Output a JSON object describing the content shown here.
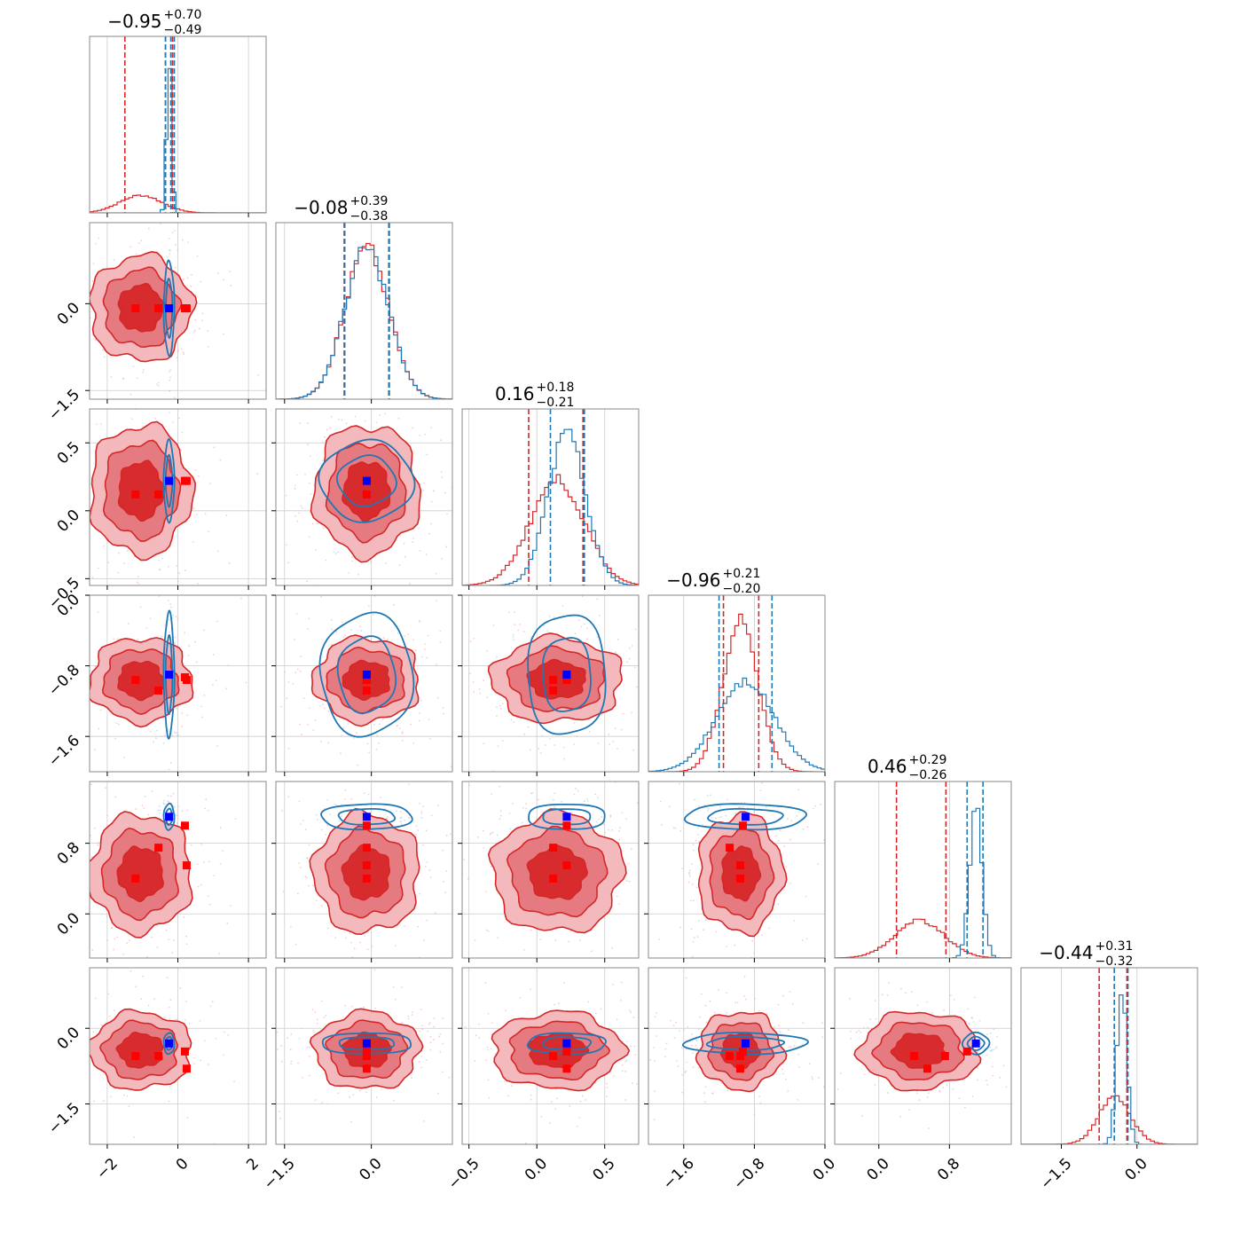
{
  "chart_data": {
    "type": "corner",
    "colors": {
      "red": "#d62728",
      "blue": "#1f77b4",
      "red_marker": "#ff0000",
      "blue_marker": "#0000ff",
      "grid": "#cccccc",
      "frame": "#888888"
    },
    "axes": [
      {
        "range": [
          -2.5,
          2.5
        ],
        "ticks": [
          -2,
          0,
          2
        ],
        "tick_labels": [
          "−2",
          "0",
          "2"
        ]
      },
      {
        "range": [
          -1.65,
          1.4
        ],
        "ticks": [
          -1.5,
          0.0
        ],
        "tick_labels": [
          "−1.5",
          "0.0"
        ]
      },
      {
        "range": [
          -0.55,
          0.75
        ],
        "ticks": [
          -0.5,
          0.0,
          0.5
        ],
        "tick_labels": [
          "−0.5",
          "0.0",
          "0.5"
        ]
      },
      {
        "range": [
          -2.0,
          0.0
        ],
        "ticks": [
          -1.6,
          -0.8,
          0.0
        ],
        "tick_labels": [
          "−1.6",
          "−0.8",
          "0.0"
        ]
      },
      {
        "range": [
          -0.5,
          1.5
        ],
        "ticks": [
          0.0,
          0.8
        ],
        "tick_labels": [
          "0.0",
          "0.8"
        ]
      },
      {
        "range": [
          -2.3,
          1.2
        ],
        "ticks": [
          -1.5,
          0.0
        ],
        "tick_labels": [
          "−1.5",
          "0.0"
        ]
      }
    ],
    "titles": [
      {
        "median": "−0.95",
        "plus": "+0.70",
        "minus": "−0.49"
      },
      {
        "median": "−0.08",
        "plus": "+0.39",
        "minus": "−0.38"
      },
      {
        "median": "0.16",
        "plus": "+0.18",
        "minus": "−0.21"
      },
      {
        "median": "−0.96",
        "plus": "+0.21",
        "minus": "−0.20"
      },
      {
        "median": "0.46",
        "plus": "+0.29",
        "minus": "−0.26"
      },
      {
        "median": "−0.44",
        "plus": "+0.31",
        "minus": "−0.32"
      }
    ],
    "red_posterior": {
      "mean": [
        -1.05,
        -0.08,
        0.15,
        -0.96,
        0.46,
        -0.44
      ],
      "sd": [
        0.6,
        0.38,
        0.2,
        0.2,
        0.28,
        0.32
      ],
      "quantile_lines": [
        [
          -1.5,
          -0.35,
          -0.15
        ],
        [
          -0.46,
          0.31
        ],
        [
          -0.06,
          0.34
        ],
        [
          -1.15,
          -0.75
        ],
        [
          0.2,
          0.76
        ],
        [
          -0.75,
          -0.2
        ]
      ]
    },
    "blue_posterior": {
      "mean": [
        -0.25,
        -0.08,
        0.22,
        -0.9,
        1.1,
        -0.3
      ],
      "sd": [
        0.07,
        0.38,
        0.14,
        0.33,
        0.07,
        0.1
      ],
      "quantile_lines": [
        [
          -0.35,
          -0.2,
          -0.1
        ],
        [
          -0.47,
          0.3
        ],
        [
          0.1,
          0.35
        ],
        [
          -1.2,
          -0.6
        ],
        [
          1.0,
          1.18
        ],
        [
          -0.45,
          -0.18
        ]
      ]
    },
    "blue_marker": [
      -0.25,
      -0.08,
      0.22,
      -0.9,
      1.1,
      -0.3
    ],
    "red_markers": [
      [
        -1.2,
        -0.08,
        0.12,
        -0.96,
        0.4,
        -0.55
      ],
      [
        -0.55,
        -0.08,
        0.12,
        -1.08,
        0.75,
        -0.55
      ],
      [
        0.2,
        -0.08,
        0.22,
        -0.93,
        1.0,
        -0.46
      ],
      [
        0.25,
        -0.08,
        0.22,
        -0.96,
        0.55,
        -0.8
      ]
    ]
  }
}
